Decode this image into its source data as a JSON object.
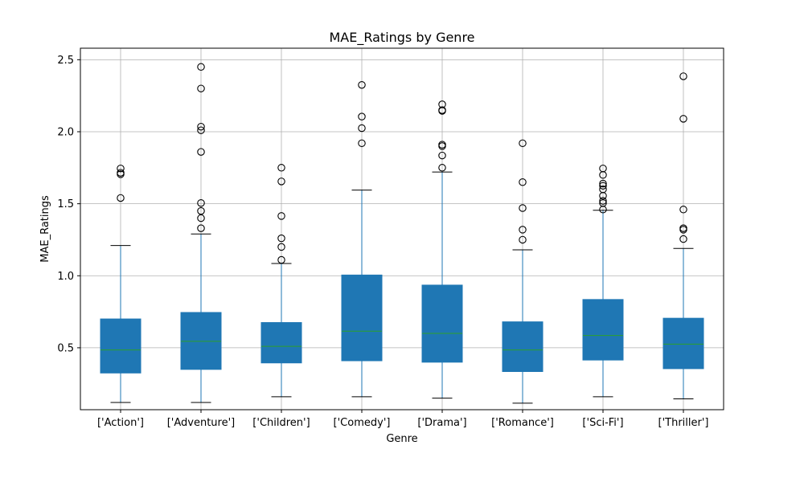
{
  "chart_data": {
    "type": "box",
    "title": "MAE_Ratings by Genre",
    "xlabel": "Genre",
    "ylabel": "MAE_Ratings",
    "ylim": [
      0.07,
      2.58
    ],
    "yticks": [
      "0.5",
      "1.0",
      "1.5",
      "2.0",
      "2.5"
    ],
    "grid": true,
    "colors": {
      "box_fill": "#1f77b4",
      "whisker": "#1f77b4",
      "median": "#2ca02c",
      "flier_edge": "#000000",
      "grid": "#b0b0b0"
    },
    "categories": [
      "['Action']",
      "['Adventure']",
      "['Children']",
      "['Comedy']",
      "['Drama']",
      "['Romance']",
      "['Sci-Fi']",
      "['Thriller']"
    ],
    "boxes": [
      {
        "whislo": 0.12,
        "q1": 0.325,
        "med": 0.485,
        "q3": 0.7,
        "whishi": 1.21,
        "fliers": [
          1.54,
          1.705,
          1.715,
          1.745
        ]
      },
      {
        "whislo": 0.12,
        "q1": 0.35,
        "med": 0.545,
        "q3": 0.745,
        "whishi": 1.29,
        "fliers": [
          1.33,
          1.4,
          1.45,
          1.505,
          1.86,
          2.01,
          2.035,
          2.3,
          2.45
        ]
      },
      {
        "whislo": 0.16,
        "q1": 0.395,
        "med": 0.51,
        "q3": 0.675,
        "whishi": 1.085,
        "fliers": [
          1.11,
          1.2,
          1.26,
          1.415,
          1.655,
          1.75
        ]
      },
      {
        "whislo": 0.16,
        "q1": 0.41,
        "med": 0.615,
        "q3": 1.005,
        "whishi": 1.595,
        "fliers": [
          1.92,
          2.025,
          2.105,
          2.325
        ]
      },
      {
        "whislo": 0.15,
        "q1": 0.4,
        "med": 0.6,
        "q3": 0.935,
        "whishi": 1.72,
        "fliers": [
          1.75,
          1.835,
          1.9,
          1.91,
          2.145,
          2.15,
          2.19
        ]
      },
      {
        "whislo": 0.115,
        "q1": 0.335,
        "med": 0.485,
        "q3": 0.68,
        "whishi": 1.18,
        "fliers": [
          1.25,
          1.32,
          1.47,
          1.65,
          1.92
        ]
      },
      {
        "whislo": 0.16,
        "q1": 0.415,
        "med": 0.585,
        "q3": 0.835,
        "whishi": 1.455,
        "fliers": [
          1.46,
          1.505,
          1.52,
          1.555,
          1.6,
          1.625,
          1.64,
          1.7,
          1.745
        ]
      },
      {
        "whislo": 0.145,
        "q1": 0.355,
        "med": 0.525,
        "q3": 0.705,
        "whishi": 1.19,
        "fliers": [
          1.255,
          1.32,
          1.33,
          1.46,
          2.09,
          2.385
        ]
      }
    ]
  }
}
